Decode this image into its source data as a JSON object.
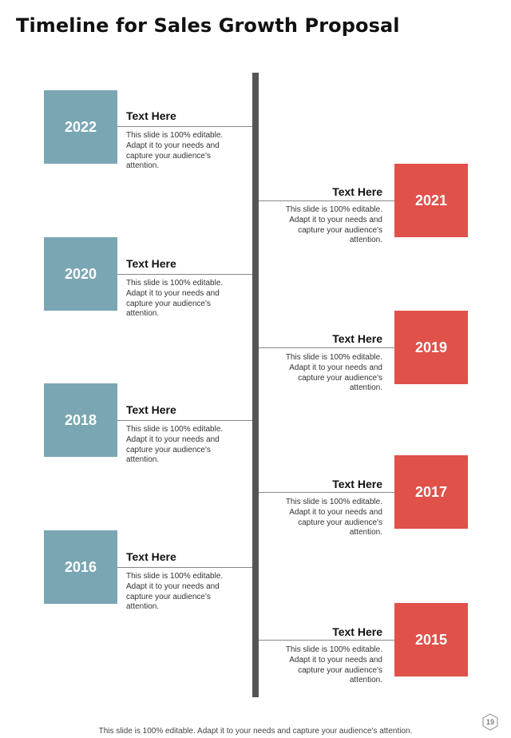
{
  "title": "Timeline for Sales Growth Proposal",
  "milestones": [
    {
      "year": "2022",
      "heading": "Text Here",
      "text": "This slide is 100% editable. Adapt it to your needs and capture your audience's attention.",
      "side": "left"
    },
    {
      "year": "2021",
      "heading": "Text Here",
      "text": "This slide is 100% editable. Adapt it to your needs and capture your audience's attention.",
      "side": "right"
    },
    {
      "year": "2020",
      "heading": "Text Here",
      "text": "This slide is 100% editable. Adapt it to your needs and capture your audience's attention.",
      "side": "left"
    },
    {
      "year": "2019",
      "heading": "Text Here",
      "text": "This slide is 100% editable. Adapt it to your needs and capture your audience's attention.",
      "side": "right"
    },
    {
      "year": "2018",
      "heading": "Text Here",
      "text": "This slide is 100% editable. Adapt it to your needs and capture your audience's attention.",
      "side": "left"
    },
    {
      "year": "2017",
      "heading": "Text Here",
      "text": "This slide is 100% editable. Adapt it to your needs and capture your audience's attention.",
      "side": "right"
    },
    {
      "year": "2016",
      "heading": "Text Here",
      "text": "This slide is 100% editable. Adapt it to your needs and capture your audience's attention.",
      "side": "left"
    },
    {
      "year": "2015",
      "heading": "Text Here",
      "text": "This slide is 100% editable. Adapt it to your needs and capture your audience's attention.",
      "side": "right"
    }
  ],
  "colors": {
    "left_box": "#7aa6b3",
    "right_box": "#e0514a",
    "axis": "#555555"
  },
  "footer": "This slide is 100% editable. Adapt it to your needs and capture your audience's attention.",
  "page_number": "19"
}
